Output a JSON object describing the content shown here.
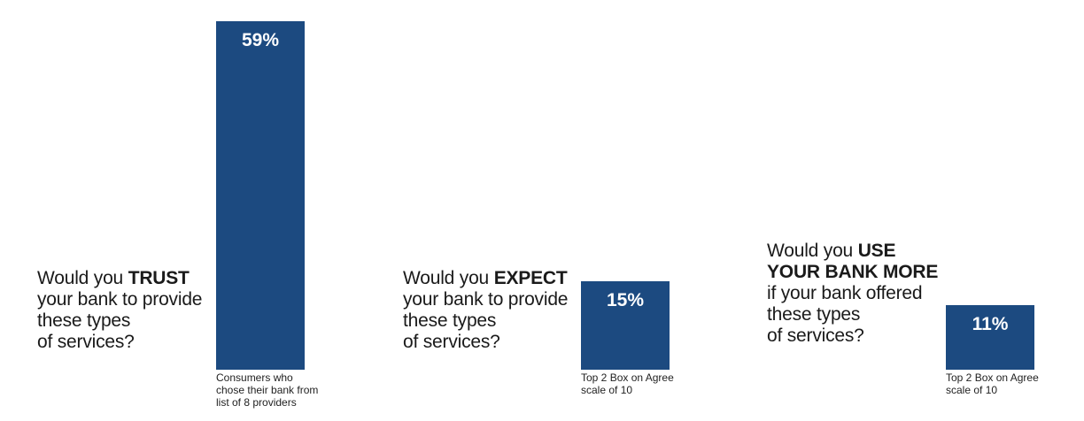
{
  "chart_data": {
    "type": "bar",
    "ylim": [
      0,
      100
    ],
    "colors": {
      "bar": "#1c4a80",
      "label": "#ffffff"
    },
    "panels": [
      {
        "question": [
          [
            {
              "t": "Would you "
            },
            {
              "t": "TRUST",
              "b": true
            }
          ],
          [
            {
              "t": "your bank to provide"
            }
          ],
          [
            {
              "t": "these types"
            }
          ],
          [
            {
              "t": "of services?"
            }
          ]
        ],
        "value": 59,
        "value_label": "59%",
        "note": [
          "Consumers who",
          "chose their bank from",
          "list of 8 providers"
        ]
      },
      {
        "question": [
          [
            {
              "t": "Would you "
            },
            {
              "t": "EXPECT",
              "b": true
            }
          ],
          [
            {
              "t": "your bank to provide"
            }
          ],
          [
            {
              "t": "these types"
            }
          ],
          [
            {
              "t": "of services?"
            }
          ]
        ],
        "value": 15,
        "value_label": "15%",
        "note": [
          "Top 2 Box on Agree",
          "scale of 10"
        ]
      },
      {
        "question": [
          [
            {
              "t": "Would you "
            },
            {
              "t": "USE",
              "b": true
            }
          ],
          [
            {
              "t": "YOUR BANK MORE",
              "b": true
            }
          ],
          [
            {
              "t": "if your bank offered"
            }
          ],
          [
            {
              "t": "these types"
            }
          ],
          [
            {
              "t": "of services?"
            }
          ]
        ],
        "value": 11,
        "value_label": "11%",
        "note": [
          "Top 2 Box on Agree",
          "scale of 10"
        ]
      }
    ]
  }
}
